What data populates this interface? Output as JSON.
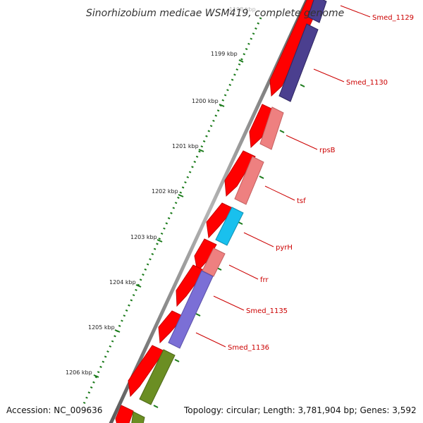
{
  "title": "Sinorhizobium medicae WSM419, complete genome",
  "accession": "Accession: NC_009636",
  "topology": "Topology: circular; Length: 3,781,904 bp; Genes: 3,592",
  "ruler": {
    "labels": [
      "1198 kbp",
      "1199 kbp",
      "1200 kbp",
      "1201 kbp",
      "1202 kbp",
      "1203 kbp",
      "1204 kbp",
      "1205 kbp",
      "1206 kbp"
    ]
  },
  "genes": [
    {
      "name": "Smed_1129",
      "color": "#4b3f8f"
    },
    {
      "name": "Smed_1130",
      "color": "#4b3f8f"
    },
    {
      "name": "rpsB",
      "color": "#ee8080"
    },
    {
      "name": "tsf",
      "color": "#ee8080"
    },
    {
      "name": "pyrH",
      "color": "#19c0ee"
    },
    {
      "name": "frr",
      "color": "#ee8080"
    },
    {
      "name": "Smed_1135",
      "color": "#7b6fd6"
    },
    {
      "name": "Smed_1136",
      "color": "#6b8e23"
    }
  ],
  "colors": {
    "cds_strand": "#ff0000",
    "backbone": "#888888",
    "ruler_ticks": "#1a7a1a",
    "labels": "#cc0000"
  }
}
